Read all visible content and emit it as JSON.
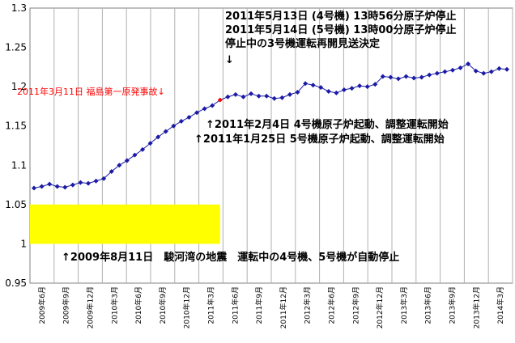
{
  "chart_data": {
    "type": "line",
    "ylim": [
      0.95,
      1.3
    ],
    "yticks": [
      "0.95",
      "1",
      "1.05",
      "1.1",
      "1.15",
      "1.2",
      "1.25",
      "1.3"
    ],
    "x_tick_labels": [
      "2009年6月",
      "2009年9月",
      "2009年12月",
      "2010年3月",
      "2010年6月",
      "2010年9月",
      "2010年12月",
      "2011年3月",
      "2011年6月",
      "2011年9月",
      "2011年12月",
      "2012年3月",
      "2012年6月",
      "2012年9月",
      "2012年12月",
      "2013年3月",
      "2013年6月",
      "2013年9月",
      "2013年12月",
      "2014年3月"
    ],
    "grid": "vertical",
    "series": [
      {
        "color": "#1a1aa6",
        "values": [
          1.071,
          1.073,
          1.076,
          1.073,
          1.072,
          1.075,
          1.078,
          1.077,
          1.08,
          1.083,
          1.092,
          1.1,
          1.106,
          1.113,
          1.12,
          1.128,
          1.136,
          1.143,
          1.15,
          1.156,
          1.161,
          1.167,
          1.172,
          1.176,
          1.183,
          1.187,
          1.19,
          1.187,
          1.191,
          1.188,
          1.188,
          1.185,
          1.186,
          1.19,
          1.193,
          1.204,
          1.202,
          1.199,
          1.194,
          1.192,
          1.196,
          1.198,
          1.201,
          1.2,
          1.203,
          1.213,
          1.212,
          1.21,
          1.213,
          1.211,
          1.212,
          1.215,
          1.217,
          1.219,
          1.221,
          1.224,
          1.229,
          1.22,
          1.217,
          1.219,
          1.223,
          1.222
        ]
      }
    ],
    "highlight_point": {
      "index": 24,
      "color": "#ff0000"
    },
    "band": {
      "from": 0,
      "to": 24,
      "ymin": 1.0,
      "ymax": 1.05,
      "color": "#ffff00"
    },
    "annotations": {
      "top_line1": "2011年5月13日 (4号機) 13時56分原子炉停止",
      "top_line2": "2011年5月14日 (5号機) 13時00分原子炉停止",
      "top_line3": "停止中の3号機運転再開見送決定",
      "down_arrow": "↓",
      "accident": "2011年3月11日 福島第一原発事故↓",
      "unit4_restart": "↑2011年2月4日 4号機原子炉起動、調整運転開始",
      "unit5_restart": "↑2011年1月25日 5号機原子炉起動、調整運転開始",
      "earthquake": "↑2009年8月11日　駿河湾の地震　運転中の4号機、5号機が自動停止"
    }
  }
}
